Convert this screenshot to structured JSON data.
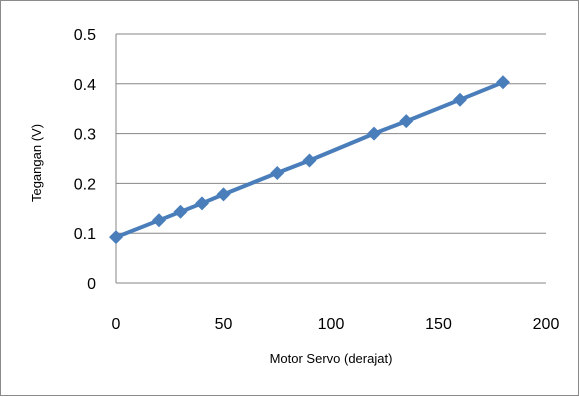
{
  "chart_data": {
    "type": "line",
    "title": "",
    "xlabel": "Motor Servo (derajat)",
    "ylabel": "Tegangan  (V)",
    "xlim": [
      0,
      200
    ],
    "ylim": [
      0,
      0.5
    ],
    "x_ticks": [
      0,
      50,
      100,
      150,
      200
    ],
    "y_ticks": [
      0,
      0.1,
      0.2,
      0.3,
      0.4,
      0.5
    ],
    "x_tick_labels": [
      "0",
      "50",
      "100",
      "150",
      "200"
    ],
    "y_tick_labels": [
      "0",
      "0.1",
      "0.2",
      "0.3",
      "0.4",
      "0.5"
    ],
    "grid": "horizontal",
    "legend": "none",
    "series": [
      {
        "color": "#4a7ebb",
        "marker": "diamond",
        "x": [
          0,
          20,
          30,
          40,
          50,
          75,
          90,
          120,
          135,
          160,
          180
        ],
        "y": [
          0.092,
          0.126,
          0.143,
          0.16,
          0.178,
          0.221,
          0.246,
          0.3,
          0.325,
          0.368,
          0.403
        ]
      }
    ]
  }
}
